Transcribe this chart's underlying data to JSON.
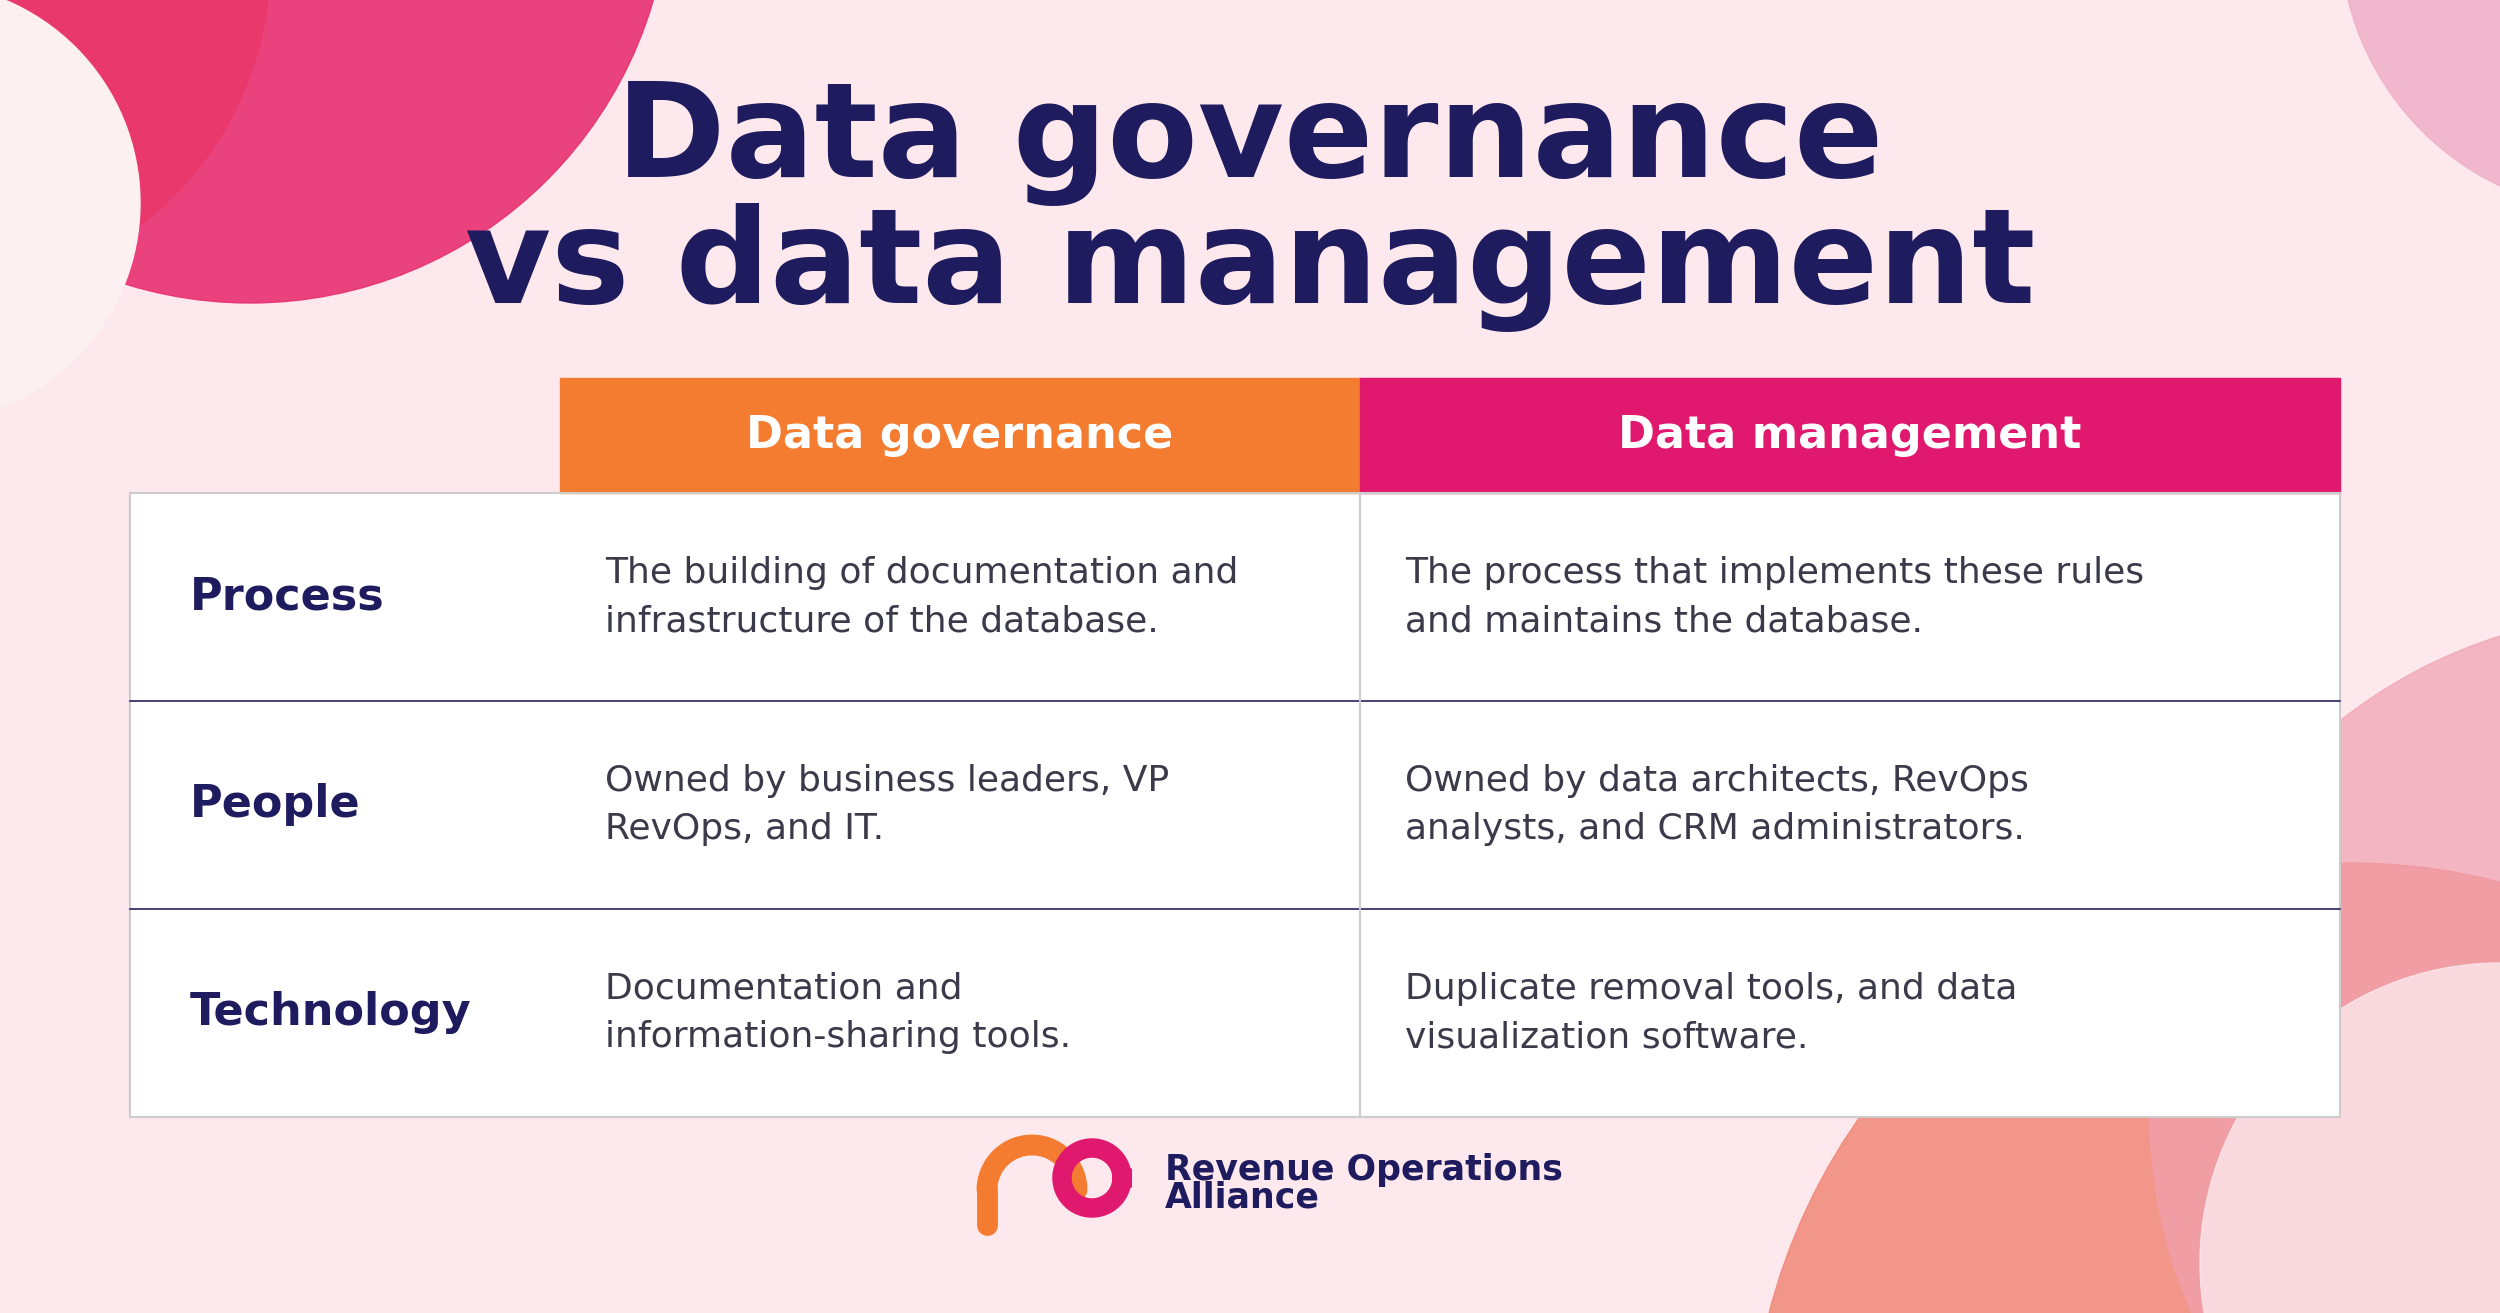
{
  "title_line1": "Data governance",
  "title_line2": "vs data management",
  "title_color": "#1e1b5e",
  "bg_color": "#fce8ed",
  "col1_header": "Data governance",
  "col2_header": "Data management",
  "col1_header_bg": "#f47c30",
  "col2_header_bg": "#e0186e",
  "header_text_color": "#ffffff",
  "row_label_color": "#1e1b5e",
  "row_text_color": "#3a3a4a",
  "divider_color": "#2a2060",
  "rows": [
    {
      "label": "Process",
      "col1": "The building of documentation and\ninfrastructure of the database.",
      "col2": "The process that implements these rules\nand maintains the database."
    },
    {
      "label": "People",
      "col1": "Owned by business leaders, VP\nRevOps, and IT.",
      "col2": "Owned by data architects, RevOps\nanalysts, and CRM administrators."
    },
    {
      "label": "Technology",
      "col1": "Documentation and\ninformation-sharing tools.",
      "col2": "Duplicate removal tools, and data\nvisualization software."
    }
  ],
  "footer_text_line1": "Revenue Operations",
  "footer_text_line2": "Alliance",
  "footer_color": "#1e1b5e",
  "blob_top_left_orange": "#f5874a",
  "blob_top_left_pink": "#e83070",
  "blob_top_right_light": "#f0b0c8",
  "blob_bottom_right_orange": "#f08060",
  "blob_bottom_right_pink": "#e87090"
}
